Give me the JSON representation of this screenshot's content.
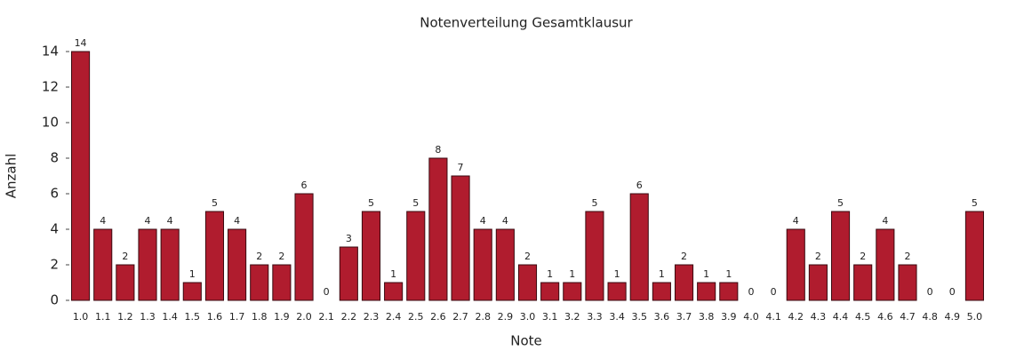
{
  "chart_data": {
    "type": "bar",
    "title": "Notenverteilung Gesamtklausur",
    "xlabel": "Note",
    "ylabel": "Anzahl",
    "categories": [
      "1.0",
      "1.1",
      "1.2",
      "1.3",
      "1.4",
      "1.5",
      "1.6",
      "1.7",
      "1.8",
      "1.9",
      "2.0",
      "2.1",
      "2.2",
      "2.3",
      "2.4",
      "2.5",
      "2.6",
      "2.7",
      "2.8",
      "2.9",
      "3.0",
      "3.1",
      "3.2",
      "3.3",
      "3.4",
      "3.5",
      "3.6",
      "3.7",
      "3.8",
      "3.9",
      "4.0",
      "4.1",
      "4.2",
      "4.3",
      "4.4",
      "4.5",
      "4.6",
      "4.7",
      "4.8",
      "4.9",
      "5.0"
    ],
    "values": [
      14,
      4,
      2,
      4,
      4,
      1,
      5,
      4,
      2,
      2,
      6,
      0,
      3,
      5,
      1,
      5,
      8,
      7,
      4,
      4,
      2,
      1,
      1,
      5,
      1,
      6,
      1,
      2,
      1,
      1,
      0,
      0,
      4,
      2,
      5,
      2,
      4,
      2,
      0,
      0,
      5
    ],
    "color": "#b01c2e",
    "ylim": [
      0,
      14
    ],
    "yticks": [
      0,
      2,
      4,
      6,
      8,
      10,
      12,
      14
    ],
    "grid": false
  }
}
